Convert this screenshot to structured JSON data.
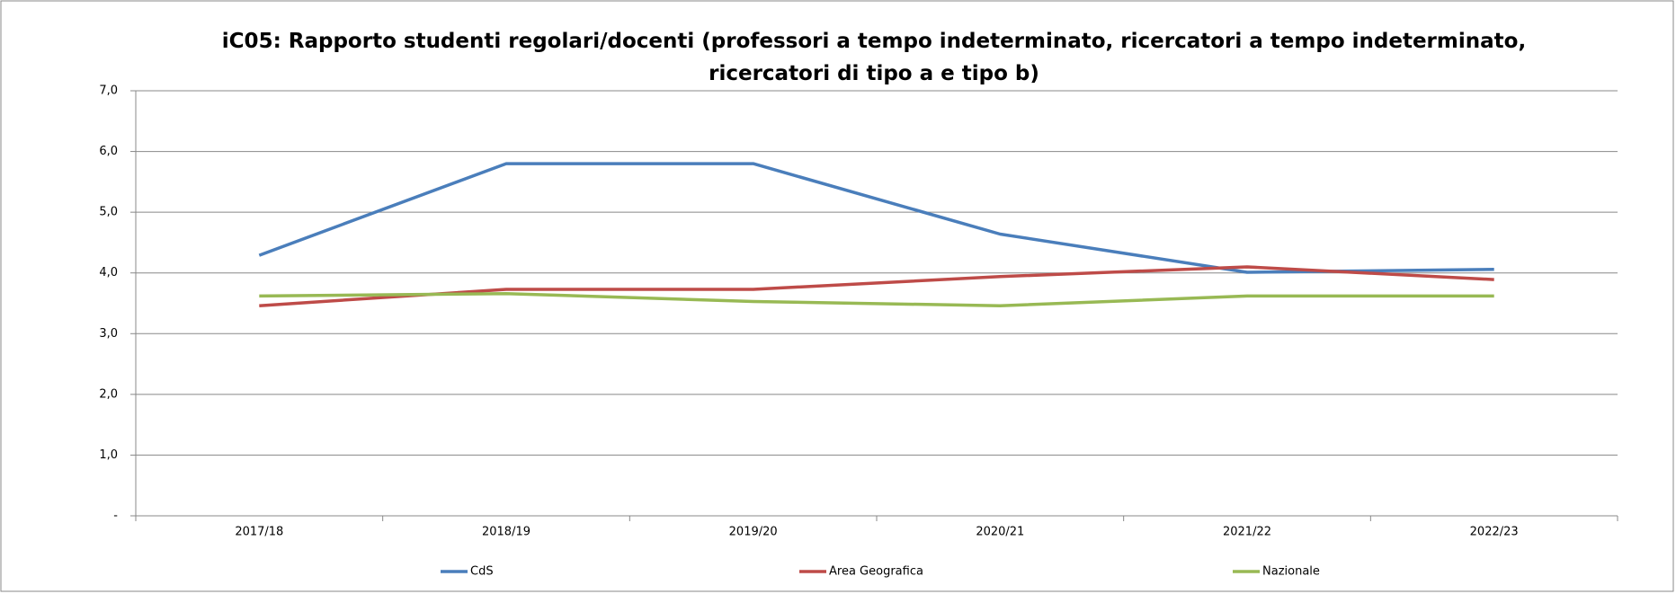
{
  "chart_data": {
    "type": "line",
    "title": "iC05: Rapporto studenti regolari/docenti (professori a tempo indeterminato, ricercatori a tempo indeterminato, ricercatori di tipo a e tipo b)",
    "categories": [
      "2017/18",
      "2018/19",
      "2019/20",
      "2020/21",
      "2021/22",
      "2022/23"
    ],
    "series": [
      {
        "name": "CdS",
        "color": "#4a7ebb",
        "values": [
          4.29,
          5.8,
          5.8,
          4.64,
          4.01,
          4.06
        ]
      },
      {
        "name": "Area Geografica",
        "color": "#be4b48",
        "values": [
          3.46,
          3.73,
          3.73,
          3.94,
          4.1,
          3.89
        ]
      },
      {
        "name": "Nazionale",
        "color": "#98b954",
        "values": [
          3.62,
          3.66,
          3.53,
          3.46,
          3.62,
          3.62
        ]
      }
    ],
    "ylim": [
      0,
      7
    ],
    "yticks": [
      {
        "value": 0,
        "label": "-"
      },
      {
        "value": 1,
        "label": "1,0"
      },
      {
        "value": 2,
        "label": "2,0"
      },
      {
        "value": 3,
        "label": "3,0"
      },
      {
        "value": 4,
        "label": "4,0"
      },
      {
        "value": 5,
        "label": "5,0"
      },
      {
        "value": 6,
        "label": "6,0"
      },
      {
        "value": 7,
        "label": "7,0"
      }
    ],
    "grid": true,
    "legend": "bottom"
  }
}
